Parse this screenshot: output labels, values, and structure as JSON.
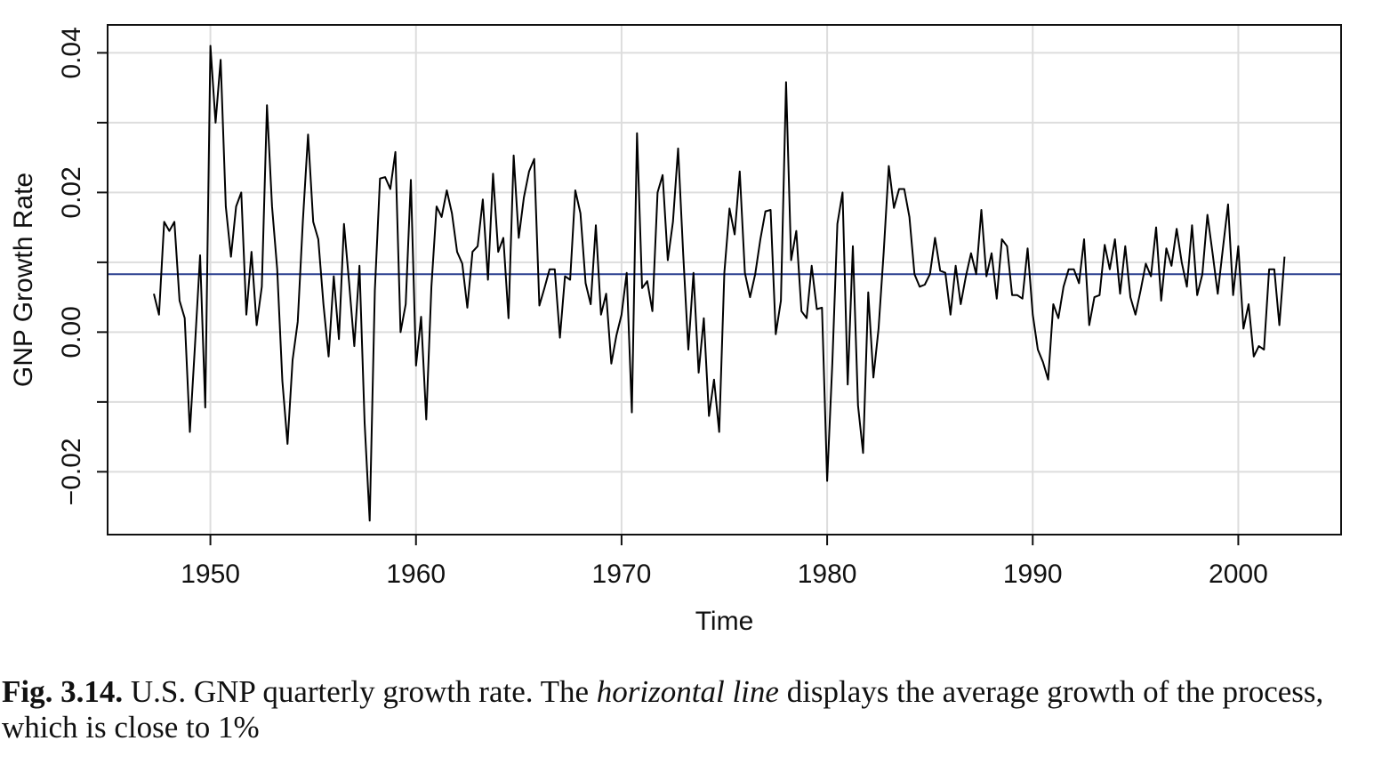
{
  "chart_data": {
    "type": "line",
    "xlabel": "Time",
    "ylabel": "GNP Growth Rate",
    "xlim": [
      1945,
      2005
    ],
    "ylim": [
      -0.029,
      0.044
    ],
    "xticks": [
      1950,
      1960,
      1970,
      1980,
      1990,
      2000
    ],
    "xtick_labels": [
      "1950",
      "1960",
      "1970",
      "1980",
      "1990",
      "2000"
    ],
    "yticks": [
      -0.02,
      0.0,
      0.02,
      0.04
    ],
    "ytick_labels": [
      "−0.02",
      "0.00",
      "0.02",
      "0.04"
    ],
    "grid": true,
    "mean_line": 0.0083,
    "line_color": "#000000",
    "mean_line_color": "#2a3f8f",
    "series": [
      {
        "x_start": 1947.25,
        "x_step": 0.25,
        "values": [
          0.0055,
          0.0025,
          0.0158,
          0.0145,
          0.0158,
          0.0045,
          0.002,
          -0.0143,
          -0.002,
          0.011,
          -0.0108,
          0.041,
          0.03,
          0.039,
          0.018,
          0.0108,
          0.018,
          0.02,
          0.0025,
          0.0115,
          0.001,
          0.0065,
          0.0325,
          0.018,
          0.009,
          -0.007,
          -0.016,
          -0.004,
          0.0015,
          0.016,
          0.0283,
          0.0158,
          0.0133,
          0.004,
          -0.0035,
          0.008,
          -0.001,
          0.0155,
          0.007,
          -0.002,
          0.0095,
          -0.013,
          -0.027,
          0.006,
          0.022,
          0.0222,
          0.0205,
          0.0258,
          0.0,
          0.004,
          0.0218,
          -0.0048,
          0.0022,
          -0.0125,
          0.0065,
          0.018,
          0.0165,
          0.0203,
          0.017,
          0.0115,
          0.0098,
          0.0035,
          0.0115,
          0.0123,
          0.019,
          0.0075,
          0.0227,
          0.0115,
          0.0135,
          0.002,
          0.0253,
          0.0135,
          0.0193,
          0.023,
          0.0248,
          0.0038,
          0.0063,
          0.009,
          0.009,
          -0.0008,
          0.008,
          0.0075,
          0.0203,
          0.017,
          0.007,
          0.004,
          0.0153,
          0.0025,
          0.0055,
          -0.0045,
          -0.0005,
          0.0025,
          0.0085,
          -0.0115,
          0.0285,
          0.0063,
          0.0073,
          0.003,
          0.02,
          0.0225,
          0.0103,
          0.0158,
          0.0263,
          0.011,
          -0.0025,
          0.0085,
          -0.0058,
          0.002,
          -0.012,
          -0.0068,
          -0.0143,
          0.0085,
          0.0177,
          0.014,
          0.023,
          0.0085,
          0.005,
          0.0083,
          0.0133,
          0.0173,
          0.0175,
          -0.0003,
          0.0045,
          0.0358,
          0.0103,
          0.0145,
          0.003,
          0.002,
          0.0095,
          0.0033,
          0.0035,
          -0.0213,
          -0.0045,
          0.0155,
          0.02,
          -0.0075,
          0.0123,
          -0.0105,
          -0.0173,
          0.0057,
          -0.0065,
          0.0005,
          0.0115,
          0.0238,
          0.0178,
          0.0205,
          0.0205,
          0.0165,
          0.0083,
          0.0065,
          0.0068,
          0.0083,
          0.0135,
          0.0088,
          0.0085,
          0.0025,
          0.0095,
          0.004,
          0.008,
          0.0113,
          0.0083,
          0.0175,
          0.008,
          0.0113,
          0.0048,
          0.0133,
          0.0123,
          0.0053,
          0.0053,
          0.0048,
          0.012,
          0.0025,
          -0.0025,
          -0.0043,
          -0.0068,
          0.004,
          0.002,
          0.0065,
          0.009,
          0.009,
          0.007,
          0.0133,
          0.001,
          0.005,
          0.0053,
          0.0125,
          0.009,
          0.0133,
          0.0055,
          0.0123,
          0.005,
          0.0025,
          0.006,
          0.0098,
          0.008,
          0.015,
          0.0045,
          0.012,
          0.0095,
          0.0148,
          0.01,
          0.0065,
          0.0153,
          0.0053,
          0.0083,
          0.0168,
          0.0113,
          0.0055,
          0.012,
          0.0183,
          0.0053,
          0.0123,
          0.0005,
          0.004,
          -0.0035,
          -0.002,
          -0.0025,
          0.009,
          0.009,
          0.001,
          0.0108
        ]
      }
    ]
  },
  "caption": {
    "label": "Fig. 3.14.",
    "text_before": " U.S. GNP quarterly growth rate. The ",
    "emphasis": "horizontal line",
    "text_after": " displays the average growth of the process, which is close to 1%"
  }
}
